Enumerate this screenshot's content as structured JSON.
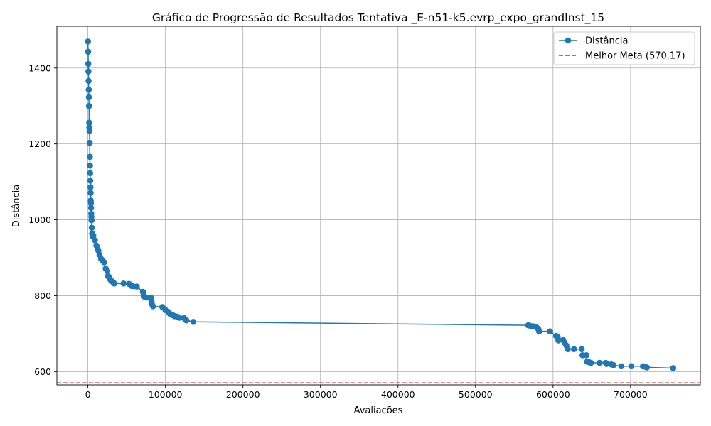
{
  "chart_data": {
    "type": "line",
    "title": "Gráfico de Progressão de Resultados Tentativa _E-n51-k5.evrp_expo_grandInst_15",
    "xlabel": "Avaliações",
    "ylabel": "Distância",
    "xlim": [
      -40000,
      790000
    ],
    "ylim": [
      565,
      1510
    ],
    "xticks": [
      0,
      100000,
      200000,
      300000,
      400000,
      500000,
      600000,
      700000
    ],
    "xtick_labels": [
      "0",
      "100000",
      "200000",
      "300000",
      "400000",
      "500000",
      "600000",
      "700000"
    ],
    "yticks": [
      600,
      800,
      1000,
      1200,
      1400
    ],
    "ytick_labels": [
      "600",
      "800",
      "1000",
      "1200",
      "1400"
    ],
    "grid": true,
    "legend_position": "top-right",
    "colors": {
      "series": "#1f77b4",
      "reference": "#d62728"
    },
    "series": [
      {
        "name": "Distância",
        "marker": "circle",
        "x": [
          0,
          300,
          500,
          700,
          900,
          1100,
          1300,
          1500,
          1700,
          1900,
          2100,
          2300,
          2500,
          2700,
          2900,
          3100,
          3300,
          3500,
          3700,
          3900,
          4100,
          4300,
          4500,
          4700,
          5000,
          5500,
          6000,
          7000,
          9000,
          11000,
          12500,
          13500,
          15000,
          17000,
          19000,
          21000,
          23000,
          25000,
          26000,
          27000,
          29000,
          31000,
          33000,
          34000,
          46000,
          53000,
          56000,
          58000,
          63000,
          71000,
          72000,
          73000,
          76000,
          81000,
          82000,
          82500,
          84000,
          96000,
          100000,
          104000,
          106000,
          108000,
          110000,
          112000,
          115000,
          118000,
          124000,
          127000,
          136000,
          568000,
          570000,
          573000,
          575000,
          579000,
          581000,
          582000,
          596000,
          604000,
          606000,
          607000,
          613000,
          615000,
          617000,
          619000,
          627000,
          637000,
          638000,
          643000,
          644000,
          646000,
          649000,
          660000,
          668000,
          669000,
          675000,
          678000,
          688000,
          701000,
          716000,
          718000,
          721000,
          755000
        ],
        "y": [
          1470,
          1443,
          1411,
          1391,
          1366,
          1343,
          1323,
          1300,
          1256,
          1243,
          1233,
          1203,
          1166,
          1143,
          1123,
          1103,
          1086,
          1071,
          1051,
          1043,
          1031,
          1016,
          1008,
          999,
          979,
          964,
          957,
          958,
          946,
          932,
          923,
          919,
          908,
          897,
          892,
          888,
          871,
          865,
          852,
          849,
          842,
          838,
          834,
          832,
          832,
          831,
          826,
          825,
          824,
          810,
          800,
          797,
          795,
          795,
          785,
          778,
          772,
          770,
          762,
          757,
          752,
          750,
          748,
          746,
          745,
          742,
          741,
          735,
          731,
          722,
          721,
          719,
          719,
          716,
          712,
          706,
          706,
          694,
          691,
          682,
          683,
          676,
          669,
          659,
          659,
          659,
          643,
          643,
          626,
          625,
          623,
          623,
          623,
          620,
          619,
          617,
          614,
          614,
          614,
          613,
          611,
          609
        ]
      },
      {
        "name": "Melhor Meta (570.17)",
        "type": "hline",
        "style": "dashed",
        "y": 570.17
      }
    ]
  }
}
